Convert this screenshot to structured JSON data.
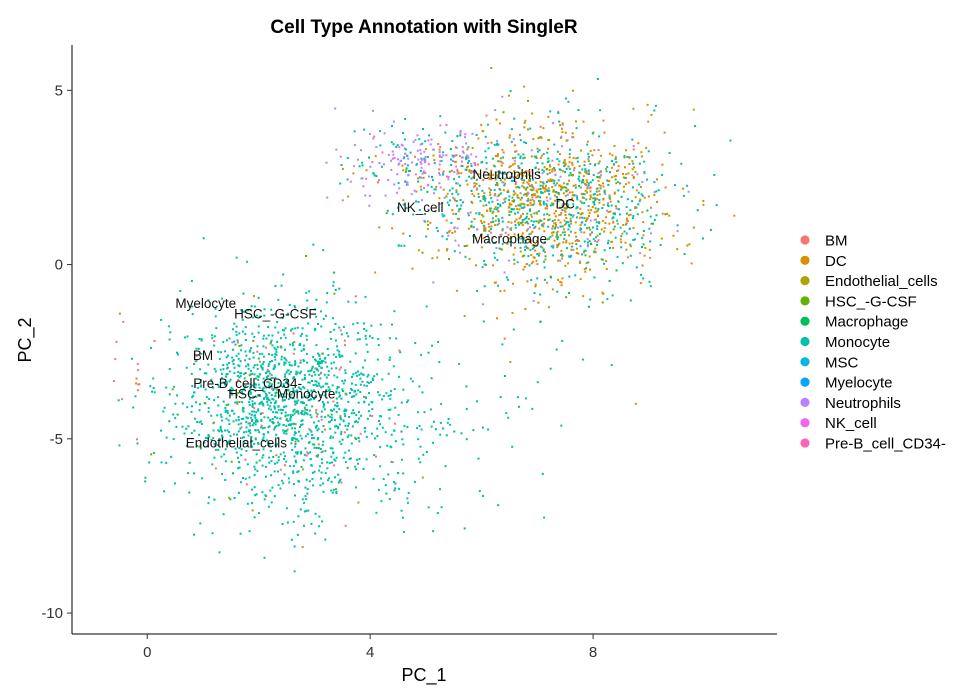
{
  "chart_data": {
    "type": "scatter",
    "title": "Cell Type Annotation with SingleR",
    "xlabel": "PC_1",
    "ylabel": "PC_2",
    "xlim": [
      -1.35,
      11.3
    ],
    "ylim": [
      -10.6,
      6.3
    ],
    "x_ticks": [
      0,
      4,
      8
    ],
    "y_ticks": [
      5,
      0,
      -5,
      -10
    ],
    "grid": false,
    "legend_position": "right",
    "series": [
      {
        "name": "BM",
        "color": "#F8766D"
      },
      {
        "name": "DC",
        "color": "#DB8E00"
      },
      {
        "name": "Endothelial_cells",
        "color": "#AEA200"
      },
      {
        "name": "HSC_-G-CSF",
        "color": "#64B200"
      },
      {
        "name": "Macrophage",
        "color": "#00BD5C"
      },
      {
        "name": "Monocyte",
        "color": "#00C1A7"
      },
      {
        "name": "MSC",
        "color": "#00BADE"
      },
      {
        "name": "Myelocyte",
        "color": "#00A6FF"
      },
      {
        "name": "Neutrophils",
        "color": "#B385FF"
      },
      {
        "name": "NK_cell",
        "color": "#EF67EB"
      },
      {
        "name": "Pre-B_cell_CD34-",
        "color": "#FF63B6"
      }
    ],
    "annotations": [
      {
        "text": "Neutrophils",
        "x": 6.45,
        "y": 2.6
      },
      {
        "text": "DC",
        "x": 7.5,
        "y": 1.75
      },
      {
        "text": "NK_cell",
        "x": 4.9,
        "y": 1.65
      },
      {
        "text": "Macrophage",
        "x": 6.5,
        "y": 0.75
      },
      {
        "text": "Myelocyte",
        "x": 1.05,
        "y": -1.1
      },
      {
        "text": "HSC_-G-CSF",
        "x": 2.3,
        "y": -1.4
      },
      {
        "text": "BM",
        "x": 1.0,
        "y": -2.6
      },
      {
        "text": "Pre-B_cell_CD34-",
        "x": 1.8,
        "y": -3.4
      },
      {
        "text": "HSC-",
        "x": 1.75,
        "y": -3.7
      },
      {
        "text": "Monocyte",
        "x": 2.85,
        "y": -3.7
      },
      {
        "text": "Endothelial_cells",
        "x": 1.6,
        "y": -5.1
      }
    ],
    "clusters": [
      {
        "cx": 7.2,
        "cy": 1.8,
        "sx": 1.05,
        "sy": 1.1,
        "n": 1500,
        "weights": {
          "DC": 0.46,
          "Monocyte": 0.36,
          "Neutrophils": 0.07,
          "Macrophage": 0.04,
          "HSC_-G-CSF": 0.03,
          "Endothelial_cells": 0.02,
          "BM": 0.02
        }
      },
      {
        "cx": 4.9,
        "cy": 2.9,
        "sx": 0.75,
        "sy": 0.55,
        "n": 260,
        "weights": {
          "Neutrophils": 0.55,
          "Monocyte": 0.25,
          "DC": 0.1,
          "NK_cell": 0.06,
          "Macrophage": 0.04
        }
      },
      {
        "cx": 2.45,
        "cy": -4.0,
        "sx": 0.95,
        "sy": 1.4,
        "n": 1450,
        "weights": {
          "Monocyte": 0.9,
          "BM": 0.03,
          "Endothelial_cells": 0.02,
          "HSC_-G-CSF": 0.02,
          "Macrophage": 0.02,
          "Pre-B_cell_CD34-": 0.01
        }
      },
      {
        "cx": 4.6,
        "cy": -5.2,
        "sx": 1.2,
        "sy": 1.2,
        "n": 110,
        "weights": {
          "Monocyte": 0.95,
          "Macrophage": 0.05
        }
      },
      {
        "cx": 6.5,
        "cy": -1.5,
        "sx": 1.2,
        "sy": 1.6,
        "n": 35,
        "weights": {
          "Monocyte": 0.9,
          "DC": 0.1
        }
      },
      {
        "cx": -0.3,
        "cy": -3.0,
        "sx": 0.3,
        "sy": 0.8,
        "n": 14,
        "weights": {
          "BM": 0.7,
          "DC": 0.3
        }
      }
    ]
  }
}
